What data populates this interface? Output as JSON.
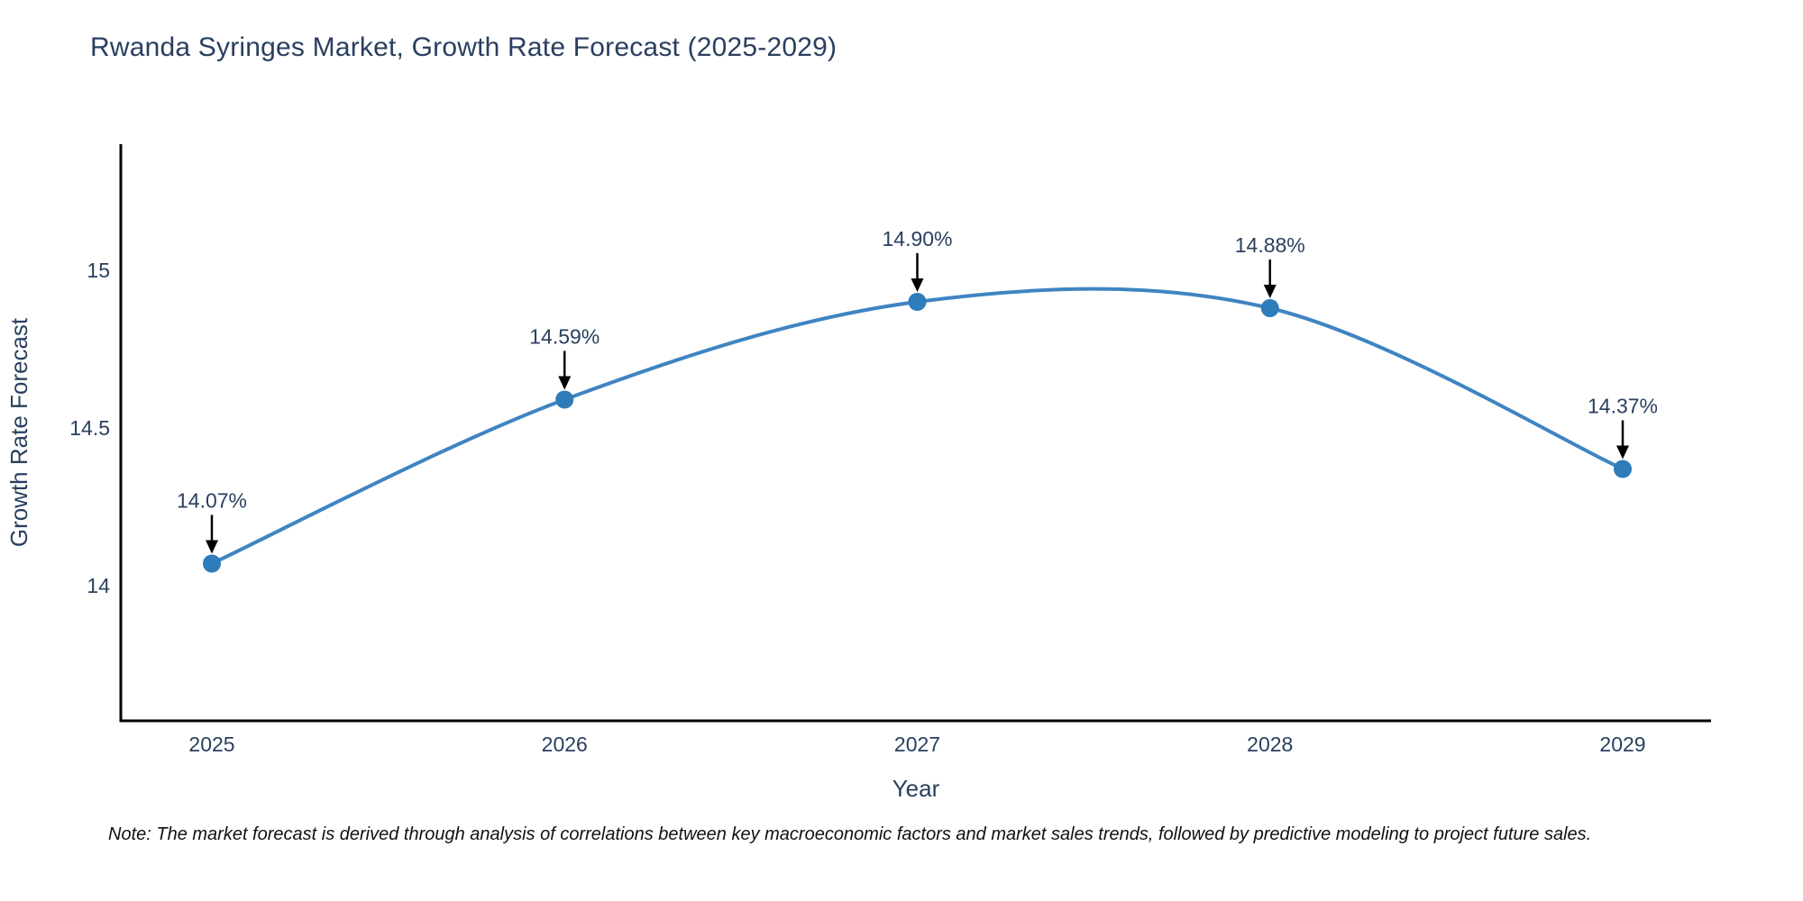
{
  "chart": {
    "title": "Rwanda Syringes Market, Growth Rate Forecast (2025-2029)",
    "note": "Note: The market forecast is derived through analysis of correlations between key macroeconomic factors and market sales trends, followed by predictive modeling to project future sales."
  },
  "chart_data": {
    "type": "line",
    "title": "Rwanda Syringes Market, Growth Rate Forecast (2025-2029)",
    "x": [
      2025,
      2026,
      2027,
      2028,
      2029
    ],
    "xtick_labels": [
      "2025",
      "2026",
      "2027",
      "2028",
      "2029"
    ],
    "series": [
      {
        "name": "Growth Rate Forecast",
        "values": [
          14.07,
          14.59,
          14.9,
          14.88,
          14.37
        ],
        "point_labels": [
          "14.07%",
          "14.59%",
          "14.90%",
          "14.88%",
          "14.37%"
        ]
      }
    ],
    "xlabel": "Year",
    "ylabel": "Growth Rate Forecast",
    "yticks": [
      14,
      14.5,
      15
    ],
    "ytick_labels": [
      "14",
      "14.5",
      "15"
    ],
    "ylim": [
      13.57,
      15.4
    ],
    "line_shape": "spline",
    "grid": false,
    "legend_position": "none",
    "colors": {
      "line": "#3f84c2",
      "marker": "#2e7cba",
      "axis_line": "#000000",
      "text": "#2a3f5f",
      "annotation_arrow": "#000000"
    }
  }
}
